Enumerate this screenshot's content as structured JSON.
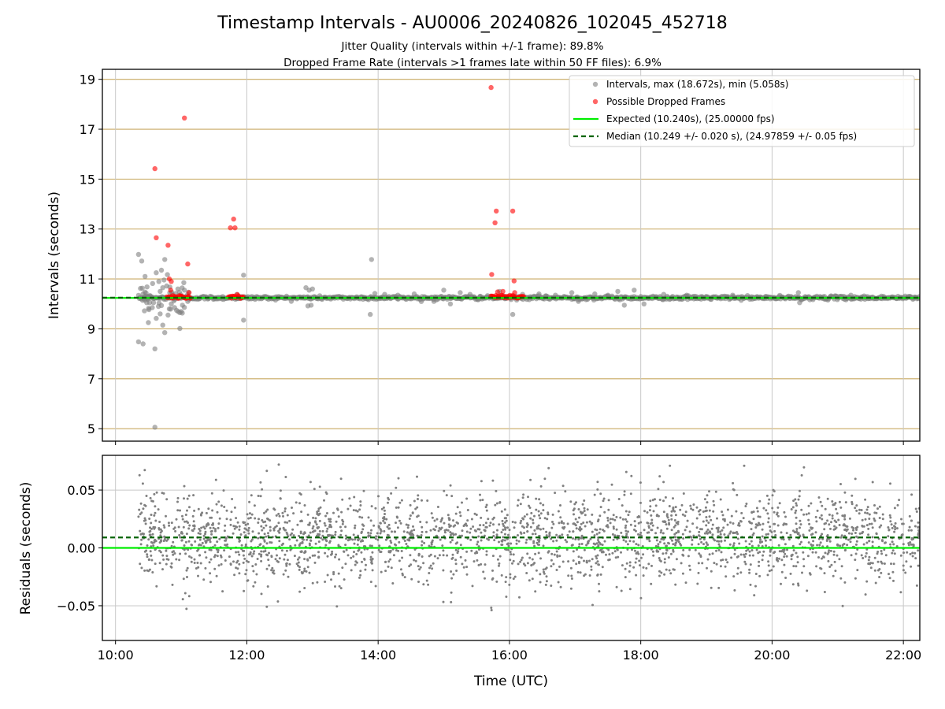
{
  "title": "Timestamp Intervals - AU0006_20240826_102045_452718",
  "subtitle_1": "Jitter Quality (intervals within +/-1 frame): 89.8%",
  "subtitle_2": "Dropped Frame Rate (intervals >1 frames late within 50 FF files): 6.9%",
  "colors": {
    "intervals": "#808080",
    "dropped": "#ff0000",
    "expected": "#00ee00",
    "median": "#006400",
    "hgrid": "#c8a860",
    "vgrid": "#c8c8c8"
  },
  "chart_data": [
    {
      "type": "scatter",
      "panel": "intervals",
      "xlabel": "",
      "ylabel": "Intervals (seconds)",
      "x_unit": "hours UTC",
      "xlim": [
        9.8,
        22.25
      ],
      "ylim": [
        4.5,
        19.4
      ],
      "yticks": [
        5,
        7,
        9,
        11,
        13,
        15,
        17,
        19
      ],
      "ytick_labels": [
        "5",
        "7",
        "9",
        "11",
        "13",
        "15",
        "17",
        "19"
      ],
      "legend_position": "top-right",
      "legend": [
        "Intervals, max (18.672s), min (5.058s)",
        "Possible Dropped Frames",
        "Expected (10.240s), (25.00000 fps)",
        "Median (10.249 +/- 0.020 s), (24.97859 +/- 0.05 fps)"
      ],
      "expected": 10.24,
      "median": 10.249,
      "series": [
        {
          "name": "Intervals, max (18.672s), min (5.058s)",
          "baseline": {
            "x_start": 10.35,
            "x_end": 22.25,
            "y": 10.245
          },
          "outliers": [
            [
              10.35,
              11.98
            ],
            [
              10.4,
              11.72
            ],
            [
              10.45,
              11.1
            ],
            [
              10.38,
              10.62
            ],
            [
              10.42,
              10.4
            ],
            [
              10.48,
              10.68
            ],
            [
              10.52,
              10.05
            ],
            [
              10.44,
              9.72
            ],
            [
              10.5,
              9.25
            ],
            [
              10.56,
              9.85
            ],
            [
              10.35,
              8.48
            ],
            [
              10.42,
              8.4
            ],
            [
              10.6,
              8.2
            ],
            [
              10.6,
              5.06
            ],
            [
              10.62,
              11.25
            ],
            [
              10.66,
              10.9
            ],
            [
              10.7,
              11.35
            ],
            [
              10.72,
              10.65
            ],
            [
              10.75,
              11.78
            ],
            [
              10.62,
              9.42
            ],
            [
              10.68,
              9.6
            ],
            [
              10.72,
              9.15
            ],
            [
              10.75,
              8.85
            ],
            [
              10.8,
              9.55
            ],
            [
              10.85,
              10.0
            ],
            [
              10.9,
              9.85
            ],
            [
              10.98,
              9.65
            ],
            [
              11.04,
              10.85
            ],
            [
              11.05,
              10.55
            ],
            [
              11.1,
              10.1
            ],
            [
              10.68,
              10.5
            ],
            [
              10.58,
              10.05
            ],
            [
              10.78,
              10.72
            ],
            [
              10.82,
              9.8
            ],
            [
              10.95,
              10.6
            ],
            [
              11.02,
              9.95
            ],
            [
              11.95,
              11.15
            ],
            [
              11.95,
              9.35
            ],
            [
              11.85,
              10.38
            ],
            [
              12.9,
              10.65
            ],
            [
              12.95,
              10.55
            ],
            [
              13.0,
              10.6
            ],
            [
              12.93,
              9.92
            ],
            [
              12.98,
              9.95
            ],
            [
              13.9,
              11.78
            ],
            [
              13.88,
              9.58
            ],
            [
              13.95,
              10.42
            ],
            [
              14.1,
              10.38
            ],
            [
              14.3,
              10.35
            ],
            [
              14.55,
              10.4
            ],
            [
              14.85,
              10.1
            ],
            [
              15.0,
              10.55
            ],
            [
              15.1,
              10.0
            ],
            [
              15.25,
              10.45
            ],
            [
              15.4,
              10.38
            ],
            [
              15.55,
              10.3
            ],
            [
              15.85,
              10.5
            ],
            [
              16.05,
              9.58
            ],
            [
              16.2,
              10.38
            ],
            [
              16.45,
              10.4
            ],
            [
              16.7,
              10.35
            ],
            [
              16.95,
              10.45
            ],
            [
              17.05,
              10.1
            ],
            [
              17.3,
              10.4
            ],
            [
              17.5,
              10.35
            ],
            [
              17.65,
              10.5
            ],
            [
              17.75,
              9.95
            ],
            [
              17.9,
              10.55
            ],
            [
              18.0,
              10.3
            ],
            [
              18.05,
              10.0
            ],
            [
              18.35,
              10.38
            ],
            [
              18.7,
              10.35
            ],
            [
              19.0,
              10.3
            ],
            [
              19.4,
              10.35
            ],
            [
              19.9,
              10.3
            ],
            [
              20.4,
              10.45
            ],
            [
              20.42,
              10.05
            ],
            [
              20.8,
              10.3
            ],
            [
              21.2,
              10.35
            ],
            [
              21.7,
              10.3
            ],
            [
              22.1,
              10.3
            ]
          ]
        },
        {
          "name": "Possible Dropped Frames",
          "clusters": [
            {
              "x_start": 10.78,
              "x_end": 11.15,
              "y": 10.28
            },
            {
              "x_start": 11.72,
              "x_end": 11.95,
              "y": 10.28
            },
            {
              "x_start": 15.72,
              "x_end": 16.22,
              "y": 10.28
            }
          ],
          "outliers": [
            [
              10.6,
              15.42
            ],
            [
              10.62,
              12.65
            ],
            [
              10.8,
              12.35
            ],
            [
              10.82,
              11.0
            ],
            [
              10.85,
              10.9
            ],
            [
              10.84,
              10.55
            ],
            [
              11.05,
              17.45
            ],
            [
              11.1,
              11.6
            ],
            [
              11.12,
              10.45
            ],
            [
              11.75,
              13.05
            ],
            [
              11.8,
              13.4
            ],
            [
              11.82,
              13.05
            ],
            [
              15.72,
              18.67
            ],
            [
              15.73,
              11.18
            ],
            [
              15.78,
              13.25
            ],
            [
              15.8,
              13.72
            ],
            [
              16.05,
              13.72
            ],
            [
              16.07,
              10.92
            ],
            [
              15.9,
              10.5
            ],
            [
              16.08,
              10.45
            ],
            [
              15.82,
              10.48
            ]
          ]
        }
      ]
    },
    {
      "type": "scatter",
      "panel": "residuals",
      "xlabel": "Time (UTC)",
      "ylabel": "Residuals (seconds)",
      "xlim": [
        9.8,
        22.25
      ],
      "ylim": [
        -0.08,
        0.08
      ],
      "yticks": [
        -0.05,
        0.0,
        0.05
      ],
      "ytick_labels": [
        "−0.05",
        "0.00",
        "0.05"
      ],
      "xticks": [
        10,
        12,
        14,
        16,
        18,
        20,
        22
      ],
      "xtick_labels": [
        "10:00",
        "12:00",
        "14:00",
        "16:00",
        "18:00",
        "20:00",
        "22:00"
      ],
      "expected": 0.0,
      "median": 0.009,
      "series": [
        {
          "name": "Residuals",
          "x_range": [
            10.35,
            22.25
          ],
          "y_range": [
            -0.076,
            0.076
          ],
          "center": 0.009,
          "spread": 0.02
        }
      ]
    }
  ]
}
